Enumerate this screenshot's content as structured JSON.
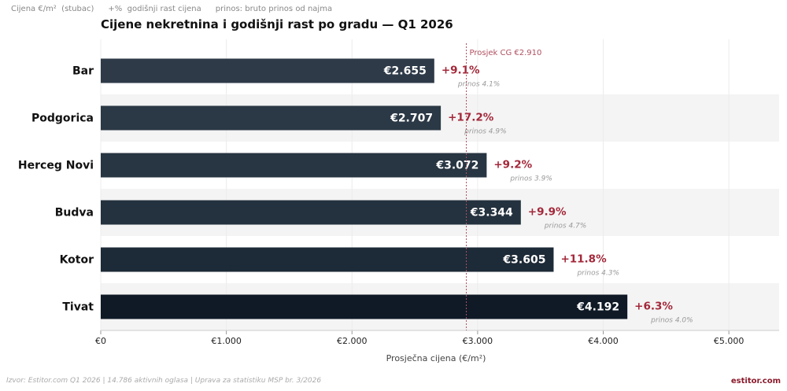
{
  "legend": [
    "Cijena €/m²  (stubac)",
    "+%  godišnji rast cijena",
    "prinos: bruto prinos od najma"
  ],
  "footer": "Izvor: Estitor.com Q1 2026  |  14.786 aktivnih oglasa  |  Uprava za statistiku MSP br. 3/2026",
  "brand": "estitor.com",
  "colors": {
    "bars": [
      "#2e3a48",
      "#2b3845",
      "#283542",
      "#24313e",
      "#1d2a37",
      "#0f1a26"
    ],
    "growth": "#a3283a",
    "average_line": "#b05060",
    "band": "#f4f4f4"
  },
  "chart_data": {
    "type": "bar",
    "orientation": "horizontal",
    "title": "Cijene nekretnina i godišnji rast po gradu — Q1 2026",
    "xlabel": "Prosječna cijena (€/m²)",
    "xlim": [
      0,
      5400
    ],
    "xticks": [
      0,
      1000,
      2000,
      3000,
      4000,
      5000
    ],
    "xtick_labels": [
      "€0",
      "€1.000",
      "€2.000",
      "€3.000",
      "€4.000",
      "€5.000"
    ],
    "grid": true,
    "categories": [
      "Bar",
      "Podgorica",
      "Herceg Novi",
      "Budva",
      "Kotor",
      "Tivat"
    ],
    "values": [
      2655,
      2707,
      3072,
      3344,
      3605,
      4192
    ],
    "value_labels": [
      "€2.655",
      "€2.707",
      "€3.072",
      "€3.344",
      "€3.605",
      "€4.192"
    ],
    "growth_labels": [
      "+9.1%",
      "+17.2%",
      "+9.2%",
      "+9.9%",
      "+11.8%",
      "+6.3%"
    ],
    "yield_labels": [
      "prinos 4.1%",
      "prinos 4.9%",
      "prinos 3.9%",
      "prinos 4.7%",
      "prinos 4.3%",
      "prinos 4.0%"
    ],
    "reference_line": {
      "value": 2910,
      "label": "Prosjek CG  €2.910"
    }
  }
}
